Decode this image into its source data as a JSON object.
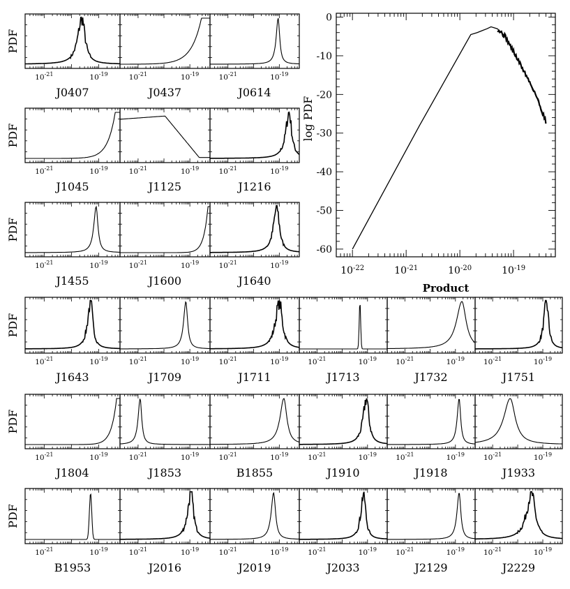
{
  "chart_data": [
    {
      "type": "line",
      "title": "",
      "xlabel": "Product",
      "ylabel": "log PDF",
      "x_scale": "log",
      "xlim": [
        5e-23,
        6e-19
      ],
      "ylim": [
        -62,
        1
      ],
      "x_tick_labels": [
        "10-22",
        "10-21",
        "10-20",
        "10-19"
      ],
      "y_tick_labels": [
        "0",
        "-10",
        "-20",
        "-30",
        "-40",
        "-50",
        "-60"
      ],
      "series": [
        {
          "name": "log PDF",
          "x": [
            1e-22,
            1.78e-21,
            1.6e-20,
            2.1e-20,
            2.6e-20,
            3.2e-20,
            3.8e-20,
            5e-20,
            7e-20,
            1e-19,
            1.5e-19,
            2.5e-19,
            4e-19
          ],
          "y": [
            -60,
            -28,
            -4.5,
            -4,
            -3.5,
            -3,
            -2.5,
            -3,
            -5,
            -9,
            -13.5,
            -19.5,
            -27
          ]
        }
      ]
    },
    {
      "type": "line",
      "description_of_grid": "small-multiple PDF panels, one per pulsar",
      "ylabel": "PDF",
      "x_scale": "log",
      "x_tick_labels": [
        "10-21",
        "10-19"
      ],
      "panels": [
        {
          "name": "J0407",
          "shape": "peak",
          "center": 2.4e-20,
          "width": 0.35,
          "noisy": true
        },
        {
          "name": "J0437",
          "shape": "rise",
          "center": 2.8e-19,
          "width": 0.7
        },
        {
          "name": "J0614",
          "shape": "peak",
          "center": 9e-20,
          "width": 0.18
        },
        {
          "name": "J1045",
          "shape": "rise",
          "center": 4e-19,
          "width": 0.5
        },
        {
          "name": "J1125",
          "shape": "plateau",
          "center": 1.1e-20,
          "width": 0.6
        },
        {
          "name": "J1216",
          "shape": "peak",
          "center": 2.4e-19,
          "width": 0.3,
          "noisy": true
        },
        {
          "name": "J1455",
          "shape": "peak",
          "center": 8e-20,
          "width": 0.2
        },
        {
          "name": "J1600",
          "shape": "rise",
          "center": 5e-19,
          "width": 0.3
        },
        {
          "name": "J1640",
          "shape": "peak",
          "center": 8e-20,
          "width": 0.3,
          "noisy": true
        },
        {
          "name": "J1643",
          "shape": "peak",
          "center": 5e-20,
          "width": 0.25,
          "noisy": true
        },
        {
          "name": "J1709",
          "shape": "peak",
          "center": 7e-20,
          "width": 0.2
        },
        {
          "name": "J1711",
          "shape": "peak",
          "center": 1e-19,
          "width": 0.35,
          "noisy": true
        },
        {
          "name": "J1713",
          "shape": "spike",
          "center": 5e-20,
          "width": 0.04
        },
        {
          "name": "J1732",
          "shape": "peak",
          "center": 1.8e-19,
          "width": 0.5
        },
        {
          "name": "J1751",
          "shape": "peak",
          "center": 1.4e-19,
          "width": 0.25,
          "noisy": true
        },
        {
          "name": "J1804",
          "shape": "rise",
          "center": 4.5e-19,
          "width": 0.35
        },
        {
          "name": "J1853",
          "shape": "peak",
          "center": 1.2e-21,
          "width": 0.18
        },
        {
          "name": "B1855",
          "shape": "peak",
          "center": 1.5e-19,
          "width": 0.35
        },
        {
          "name": "J1910",
          "shape": "peak",
          "center": 9e-20,
          "width": 0.3,
          "noisy": true
        },
        {
          "name": "J1918",
          "shape": "peak",
          "center": 1.4e-19,
          "width": 0.18
        },
        {
          "name": "J1933",
          "shape": "peak",
          "center": 5e-21,
          "width": 0.6
        },
        {
          "name": "B1953",
          "shape": "spike",
          "center": 5e-20,
          "width": 0.06
        },
        {
          "name": "J2016",
          "shape": "peak",
          "center": 1.1e-19,
          "width": 0.3,
          "noisy": true
        },
        {
          "name": "J2019",
          "shape": "peak",
          "center": 6e-20,
          "width": 0.22
        },
        {
          "name": "J2033",
          "shape": "peak",
          "center": 7e-20,
          "width": 0.25,
          "noisy": true
        },
        {
          "name": "J2129",
          "shape": "peak",
          "center": 1.4e-19,
          "width": 0.2
        },
        {
          "name": "J2229",
          "shape": "peak",
          "center": 3.5e-20,
          "width": 0.45,
          "noisy": true
        }
      ]
    }
  ]
}
